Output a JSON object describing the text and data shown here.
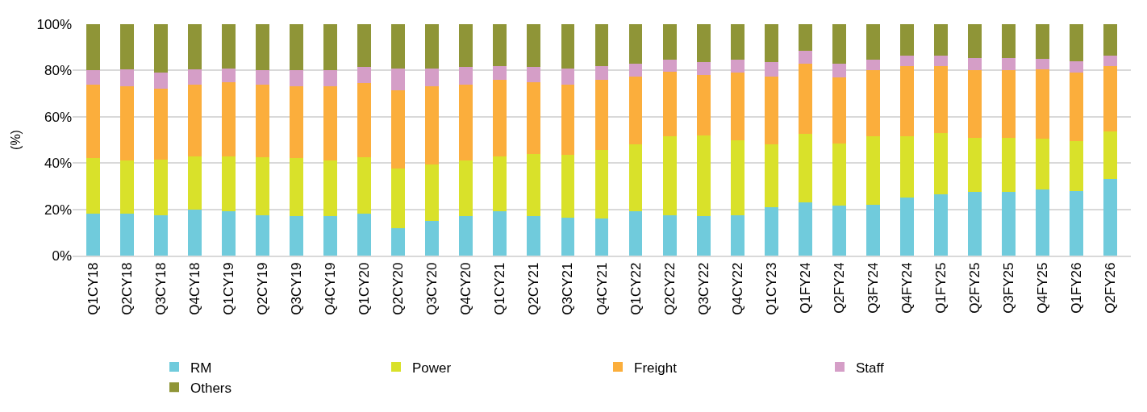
{
  "chart_data": {
    "type": "bar",
    "stacked": true,
    "ylabel": "(%)",
    "categories": [
      "Q1CY18",
      "Q2CY18",
      "Q3CY18",
      "Q4CY18",
      "Q1CY19",
      "Q2CY19",
      "Q3CY19",
      "Q4CY19",
      "Q1CY20",
      "Q2CY20",
      "Q3CY20",
      "Q4CY20",
      "Q1CY21",
      "Q2CY21",
      "Q3CY21",
      "Q4CY21",
      "Q1CY22",
      "Q2CY22",
      "Q3CY22",
      "Q4CY22",
      "Q1CY23",
      "Q1FY24",
      "Q2FY24",
      "Q3FY24",
      "Q4FY24",
      "Q1FY25",
      "Q2FY25",
      "Q3FY25",
      "Q4FY25",
      "Q1FY26",
      "Q2FY26"
    ],
    "series": [
      {
        "name": "RM",
        "color": "#70cbdc",
        "values": [
          18,
          18,
          17.5,
          20,
          19,
          17.5,
          17,
          17,
          18,
          12,
          15,
          17,
          19,
          17,
          16.5,
          16,
          19,
          17.5,
          17,
          17.5,
          21,
          23,
          21.5,
          22,
          25,
          26.5,
          27.5,
          27.5,
          28.5,
          28,
          33
        ]
      },
      {
        "name": "Power",
        "color": "#d9e12a",
        "values": [
          24,
          23,
          24,
          23,
          24,
          25,
          25,
          24,
          24.5,
          25.5,
          24.5,
          24,
          24,
          27,
          27,
          29.5,
          29,
          34,
          35,
          32.5,
          27,
          29.5,
          27,
          29.5,
          26.5,
          26.5,
          23.5,
          23.5,
          22,
          21.5,
          20.5
        ]
      },
      {
        "name": "Freight",
        "color": "#fbae3c",
        "values": [
          32,
          32,
          30.5,
          31,
          32,
          31.5,
          31,
          32,
          32,
          34,
          33.5,
          33,
          33,
          31,
          30.5,
          30.5,
          29.5,
          28,
          26,
          29,
          29.5,
          30.5,
          28.5,
          28.5,
          30.5,
          29,
          29,
          29,
          30,
          29.5,
          28.5
        ]
      },
      {
        "name": "Staff",
        "color": "#d59ec7",
        "values": [
          6,
          7.5,
          7,
          6.5,
          6,
          6,
          7,
          7,
          7,
          9.5,
          8,
          7.5,
          6,
          6.5,
          7,
          6,
          5.5,
          5,
          5.5,
          5.5,
          6,
          5.5,
          6,
          4.5,
          4.5,
          4.5,
          5.5,
          5.5,
          4.5,
          5,
          4.5
        ]
      },
      {
        "name": "Others",
        "color": "#8f9537",
        "values": [
          20,
          19.5,
          21,
          19.5,
          19,
          20,
          20,
          20,
          18.5,
          19,
          19,
          18.5,
          18,
          18.5,
          19,
          18,
          17,
          15.5,
          16.5,
          15.5,
          16.5,
          11.5,
          17,
          15.5,
          13.5,
          13.5,
          14.5,
          14.5,
          15,
          16,
          13.5
        ]
      }
    ],
    "ylim": [
      0,
      100
    ],
    "yticks": [
      {
        "value": 0,
        "label": "0%"
      },
      {
        "value": 20,
        "label": "20%"
      },
      {
        "value": 40,
        "label": "40%"
      },
      {
        "value": 60,
        "label": "60%"
      },
      {
        "value": 80,
        "label": "80%"
      },
      {
        "value": 100,
        "label": "100%"
      }
    ],
    "grid": "y",
    "legend": "bottom"
  }
}
